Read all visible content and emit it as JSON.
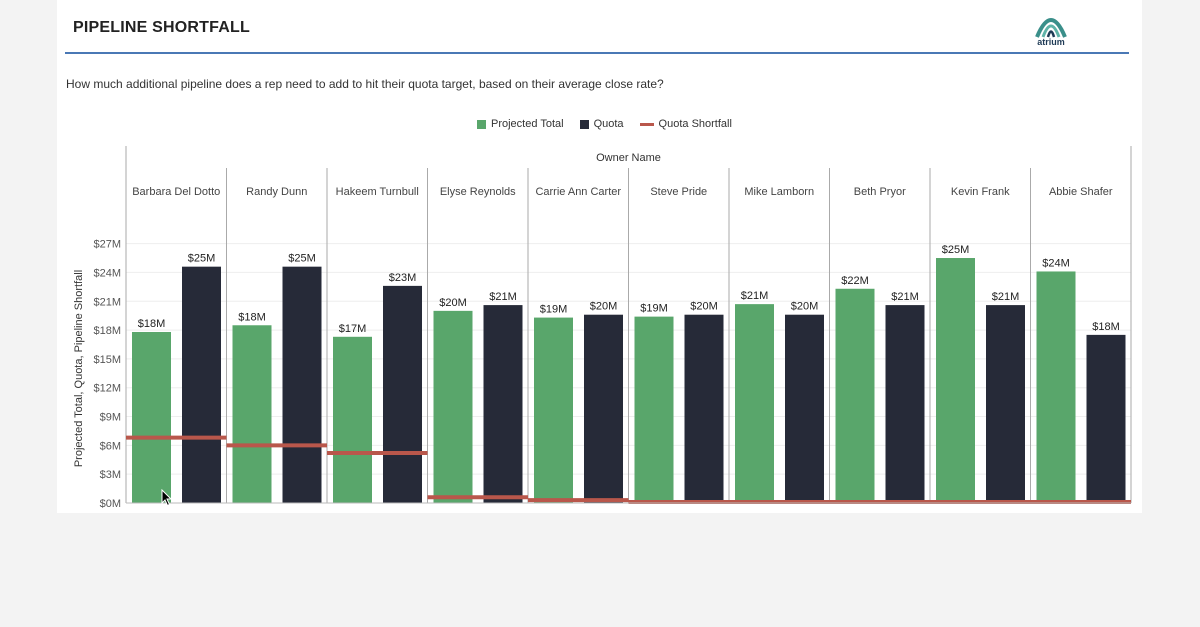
{
  "header": {
    "title": "PIPELINE SHORTFALL",
    "logo_text": "atrium",
    "subtitle": "How much additional pipeline does a rep need to add to hit their quota target, based on their average close rate?"
  },
  "legend": [
    {
      "label": "Projected Total",
      "color": "#59a66b",
      "kind": "square"
    },
    {
      "label": "Quota",
      "color": "#262a38",
      "kind": "square"
    },
    {
      "label": "Quota Shortfall",
      "color": "#b9574b",
      "kind": "line"
    }
  ],
  "chart_data": {
    "type": "bar",
    "column_header": "Owner Name",
    "ylabel": "Projected Total, Quota, Pipeline Shortfall",
    "ylim": [
      0,
      28
    ],
    "yticks": [
      0,
      3,
      6,
      9,
      12,
      15,
      18,
      21,
      24,
      27
    ],
    "ytick_labels": [
      "$0M",
      "$3M",
      "$6M",
      "$9M",
      "$12M",
      "$15M",
      "$18M",
      "$21M",
      "$24M",
      "$27M"
    ],
    "categories": [
      "Barbara Del Dotto",
      "Randy Dunn",
      "Hakeem Turnbull",
      "Elyse Reynolds",
      "Carrie Ann Carter",
      "Steve Pride",
      "Mike Lamborn",
      "Beth Pryor",
      "Kevin Frank",
      "Abbie Shafer"
    ],
    "series": [
      {
        "name": "Projected Total",
        "color": "#59a66b",
        "values": [
          17.8,
          18.5,
          17.3,
          20.0,
          19.3,
          19.4,
          20.7,
          22.3,
          25.5,
          24.1
        ],
        "labels": [
          "$18M",
          "$18M",
          "$17M",
          "$20M",
          "$19M",
          "$19M",
          "$21M",
          "$22M",
          "$25M",
          "$24M"
        ]
      },
      {
        "name": "Quota",
        "color": "#262a38",
        "values": [
          24.6,
          24.6,
          22.6,
          20.6,
          19.6,
          19.6,
          19.6,
          20.6,
          20.6,
          17.5
        ],
        "labels": [
          "$25M",
          "$25M",
          "$23M",
          "$21M",
          "$20M",
          "$20M",
          "$20M",
          "$21M",
          "$21M",
          "$18M"
        ]
      },
      {
        "name": "Quota Shortfall",
        "color": "#b9574b",
        "values": [
          6.8,
          6.0,
          5.2,
          0.6,
          0.3,
          0.1,
          0,
          0,
          0,
          0
        ]
      }
    ]
  }
}
